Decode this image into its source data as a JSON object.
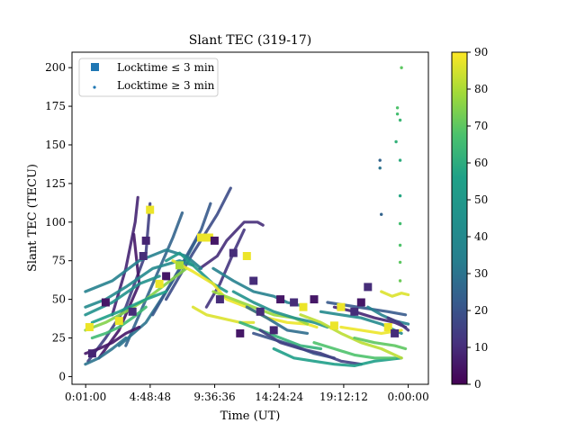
{
  "chart_data": {
    "type": "scatter",
    "title": "Slant TEC (319-17)",
    "xlabel": "Time (UT)",
    "ylabel": "Slant TEC (TECU)",
    "x_tick_labels": [
      "0:01:00",
      "4:48:48",
      "9:36:36",
      "14:24:24",
      "19:12:12",
      "0:00:00"
    ],
    "x_tick_hours": [
      0.0167,
      4.8133,
      9.61,
      14.4067,
      19.2033,
      24.0
    ],
    "xlim_hours": [
      -1.0,
      25.5
    ],
    "ylim": [
      -5,
      210
    ],
    "y_ticks": [
      0,
      25,
      50,
      75,
      100,
      125,
      150,
      175,
      200
    ],
    "colorbar": {
      "colormap": "viridis",
      "range": [
        0,
        90
      ],
      "ticks": [
        0,
        10,
        20,
        30,
        40,
        50,
        60,
        70,
        80,
        90
      ]
    },
    "legend": {
      "placement": "top-left",
      "entries": [
        {
          "label": "Locktime ≤ 3 min",
          "marker": "square",
          "color": "#1f77b4"
        },
        {
          "label": "Locktime ≥ 3 min",
          "marker": "dot",
          "color": "#1f77b4"
        }
      ]
    },
    "grid": false,
    "series": [
      {
        "c": 15,
        "points": [
          [
            0.2,
            10
          ],
          [
            1.5,
            25
          ],
          [
            3.0,
            45
          ],
          [
            4.5,
            80
          ],
          [
            4.8,
            112
          ]
        ]
      },
      {
        "c": 5,
        "points": [
          [
            1.0,
            12
          ],
          [
            2.5,
            30
          ],
          [
            4.0,
            60
          ],
          [
            3.6,
            92
          ]
        ]
      },
      {
        "c": 8,
        "points": [
          [
            2.0,
            40
          ],
          [
            3.0,
            70
          ],
          [
            3.7,
            100
          ],
          [
            3.9,
            116
          ]
        ]
      },
      {
        "c": 25,
        "points": [
          [
            3.0,
            20
          ],
          [
            5.0,
            60
          ],
          [
            6.5,
            90
          ],
          [
            7.2,
            106
          ]
        ]
      },
      {
        "c": 30,
        "points": [
          [
            2.5,
            20
          ],
          [
            4.5,
            35
          ],
          [
            6.0,
            55
          ],
          [
            7.4,
            75
          ],
          [
            8.2,
            88
          ]
        ]
      },
      {
        "c": 22,
        "points": [
          [
            5.0,
            40
          ],
          [
            7.0,
            70
          ],
          [
            8.6,
            95
          ],
          [
            9.3,
            112
          ]
        ]
      },
      {
        "c": 18,
        "points": [
          [
            6.0,
            50
          ],
          [
            8.0,
            80
          ],
          [
            9.8,
            105
          ],
          [
            10.8,
            122
          ]
        ]
      },
      {
        "c": 10,
        "points": [
          [
            8.5,
            70
          ],
          [
            9.8,
            78
          ],
          [
            10.5,
            88
          ],
          [
            11.8,
            100
          ],
          [
            12.8,
            100
          ],
          [
            13.2,
            98
          ]
        ]
      },
      {
        "c": 12,
        "points": [
          [
            9.0,
            45
          ],
          [
            10.0,
            60
          ],
          [
            11.0,
            80
          ],
          [
            11.8,
            95
          ]
        ]
      },
      {
        "c": 35,
        "points": [
          [
            0.0,
            55
          ],
          [
            2.0,
            62
          ],
          [
            4.0,
            75
          ],
          [
            6.0,
            82
          ],
          [
            7.5,
            78
          ],
          [
            8.6,
            70
          ]
        ]
      },
      {
        "c": 40,
        "points": [
          [
            0.0,
            45
          ],
          [
            1.5,
            50
          ],
          [
            3.0,
            58
          ],
          [
            5.0,
            70
          ],
          [
            7.0,
            75
          ],
          [
            8.0,
            72
          ]
        ]
      },
      {
        "c": 45,
        "points": [
          [
            0.0,
            40
          ],
          [
            2.0,
            48
          ],
          [
            4.0,
            60
          ],
          [
            5.5,
            65
          ]
        ]
      },
      {
        "c": 75,
        "points": [
          [
            0.0,
            30
          ],
          [
            1.5,
            35
          ],
          [
            3.0,
            42
          ],
          [
            4.5,
            50
          ],
          [
            6.0,
            60
          ],
          [
            7.5,
            70
          ]
        ]
      },
      {
        "c": 55,
        "points": [
          [
            0.5,
            35
          ],
          [
            2.5,
            42
          ],
          [
            4.5,
            50
          ],
          [
            6.0,
            55
          ]
        ]
      },
      {
        "c": 50,
        "points": [
          [
            6.0,
            75
          ],
          [
            7.0,
            80
          ],
          [
            8.0,
            72
          ],
          [
            9.5,
            60
          ],
          [
            10.5,
            55
          ]
        ]
      },
      {
        "c": 88,
        "points": [
          [
            6.5,
            75
          ],
          [
            8.0,
            68
          ],
          [
            9.5,
            60
          ],
          [
            10.5,
            50
          ],
          [
            12.0,
            45
          ],
          [
            13.5,
            38
          ],
          [
            15.0,
            35
          ],
          [
            16.5,
            34
          ],
          [
            17.2,
            32
          ]
        ]
      },
      {
        "c": 86,
        "points": [
          [
            8.0,
            45
          ],
          [
            9.0,
            40
          ],
          [
            10.0,
            38
          ],
          [
            11.5,
            35
          ],
          [
            12.5,
            35
          ]
        ]
      },
      {
        "c": 78,
        "points": [
          [
            9.5,
            55
          ],
          [
            11.0,
            50
          ],
          [
            12.5,
            45
          ],
          [
            14.0,
            40
          ],
          [
            15.5,
            38
          ],
          [
            16.5,
            34
          ]
        ]
      },
      {
        "c": 35,
        "points": [
          [
            9.5,
            70
          ],
          [
            11.0,
            62
          ],
          [
            12.5,
            55
          ],
          [
            14.0,
            52
          ],
          [
            15.0,
            48
          ],
          [
            16.0,
            46
          ]
        ]
      },
      {
        "c": 45,
        "points": [
          [
            11.0,
            55
          ],
          [
            12.5,
            48
          ],
          [
            14.0,
            42
          ],
          [
            15.5,
            38
          ],
          [
            17.0,
            35
          ],
          [
            18.0,
            32
          ]
        ]
      },
      {
        "c": 28,
        "points": [
          [
            12.0,
            45
          ],
          [
            13.5,
            38
          ],
          [
            15.0,
            30
          ],
          [
            16.5,
            28
          ]
        ]
      },
      {
        "c": 62,
        "points": [
          [
            11.5,
            35
          ],
          [
            13.0,
            30
          ],
          [
            14.5,
            25
          ],
          [
            16.0,
            20
          ],
          [
            17.5,
            18
          ]
        ]
      },
      {
        "c": 20,
        "points": [
          [
            12.5,
            28
          ],
          [
            14.0,
            24
          ],
          [
            15.5,
            20
          ],
          [
            17.0,
            15
          ],
          [
            18.5,
            12
          ]
        ]
      },
      {
        "c": 15,
        "points": [
          [
            13.0,
            30
          ],
          [
            14.5,
            22
          ],
          [
            16.0,
            18
          ],
          [
            17.5,
            15
          ],
          [
            19.0,
            10
          ],
          [
            20.5,
            8
          ]
        ]
      },
      {
        "c": 55,
        "points": [
          [
            14.0,
            18
          ],
          [
            15.5,
            12
          ],
          [
            17.0,
            10
          ],
          [
            18.5,
            8
          ],
          [
            20.0,
            7
          ],
          [
            21.5,
            10
          ],
          [
            23.5,
            12
          ]
        ]
      },
      {
        "c": 82,
        "points": [
          [
            16.0,
            40
          ],
          [
            17.5,
            35
          ],
          [
            19.0,
            28
          ],
          [
            20.5,
            22
          ],
          [
            22.0,
            18
          ],
          [
            23.5,
            12
          ]
        ]
      },
      {
        "c": 68,
        "points": [
          [
            17.0,
            22
          ],
          [
            18.5,
            18
          ],
          [
            20.0,
            14
          ],
          [
            21.5,
            12
          ],
          [
            23.0,
            12
          ]
        ]
      },
      {
        "c": 40,
        "points": [
          [
            17.5,
            42
          ],
          [
            19.0,
            40
          ],
          [
            20.5,
            38
          ],
          [
            22.0,
            34
          ],
          [
            23.5,
            28
          ]
        ]
      },
      {
        "c": 22,
        "points": [
          [
            18.0,
            48
          ],
          [
            19.5,
            46
          ],
          [
            21.0,
            44
          ],
          [
            22.5,
            42
          ],
          [
            23.8,
            40
          ]
        ]
      },
      {
        "c": 88,
        "points": [
          [
            19.0,
            32
          ],
          [
            20.5,
            30
          ],
          [
            22.0,
            28
          ],
          [
            23.5,
            30
          ]
        ]
      },
      {
        "c": 8,
        "points": [
          [
            18.5,
            45
          ],
          [
            20.0,
            42
          ],
          [
            21.5,
            38
          ],
          [
            23.0,
            35
          ],
          [
            23.8,
            32
          ]
        ]
      },
      {
        "c": 70,
        "points": [
          [
            20.0,
            25
          ],
          [
            21.5,
            22
          ],
          [
            23.0,
            20
          ],
          [
            23.8,
            18
          ]
        ]
      },
      {
        "c": 35,
        "points": [
          [
            21.0,
            45
          ],
          [
            22.0,
            40
          ],
          [
            23.0,
            36
          ],
          [
            24.0,
            34
          ]
        ]
      },
      {
        "c": 86,
        "points": [
          [
            22.0,
            55
          ],
          [
            22.8,
            52
          ],
          [
            23.5,
            54
          ],
          [
            24.0,
            53
          ]
        ]
      },
      {
        "c": 12,
        "points": [
          [
            22.5,
            38
          ],
          [
            23.3,
            35
          ],
          [
            24.0,
            30
          ]
        ]
      },
      {
        "c": 5,
        "points": [
          [
            0.0,
            15
          ],
          [
            1.0,
            18
          ],
          [
            2.0,
            22
          ],
          [
            3.0,
            28
          ],
          [
            4.0,
            32
          ]
        ]
      },
      {
        "c": 65,
        "points": [
          [
            0.5,
            25
          ],
          [
            1.5,
            28
          ],
          [
            2.5,
            32
          ],
          [
            3.5,
            38
          ],
          [
            4.5,
            45
          ]
        ]
      },
      {
        "c": 30,
        "points": [
          [
            0.0,
            8
          ],
          [
            1.0,
            12
          ],
          [
            2.0,
            18
          ],
          [
            3.0,
            25
          ]
        ]
      }
    ],
    "locktime_short": [
      [
        4.8,
        108,
        88
      ],
      [
        4.5,
        88,
        8
      ],
      [
        4.3,
        78,
        10
      ],
      [
        7.0,
        72,
        80
      ],
      [
        8.6,
        90,
        88
      ],
      [
        9.2,
        90,
        88
      ],
      [
        9.6,
        88,
        5
      ],
      [
        11.0,
        80,
        10
      ],
      [
        12.0,
        78,
        88
      ],
      [
        12.5,
        62,
        10
      ],
      [
        13.0,
        42,
        10
      ],
      [
        11.5,
        28,
        5
      ],
      [
        14.5,
        50,
        5
      ],
      [
        15.5,
        48,
        10
      ],
      [
        16.2,
        45,
        88
      ],
      [
        17.0,
        50,
        5
      ],
      [
        19.0,
        45,
        88
      ],
      [
        20.0,
        42,
        10
      ],
      [
        21.0,
        58,
        10
      ],
      [
        22.5,
        32,
        88
      ],
      [
        23.0,
        28,
        10
      ],
      [
        1.5,
        48,
        5
      ],
      [
        2.5,
        36,
        88
      ],
      [
        3.5,
        42,
        10
      ],
      [
        0.5,
        15,
        8
      ],
      [
        0.3,
        32,
        88
      ],
      [
        6.0,
        65,
        5
      ],
      [
        5.5,
        60,
        88
      ],
      [
        10.0,
        50,
        10
      ],
      [
        14.0,
        30,
        8
      ],
      [
        18.5,
        33,
        88
      ],
      [
        20.5,
        48,
        5
      ]
    ],
    "isolated_points": [
      [
        21.9,
        140,
        25
      ],
      [
        21.9,
        135,
        30
      ],
      [
        22.0,
        105,
        25
      ],
      [
        23.5,
        200,
        70
      ],
      [
        23.2,
        174,
        68
      ],
      [
        23.2,
        170,
        66
      ],
      [
        23.4,
        166,
        64
      ],
      [
        23.1,
        152,
        62
      ],
      [
        23.4,
        140,
        60
      ],
      [
        23.4,
        117,
        58
      ],
      [
        23.4,
        99,
        66
      ],
      [
        23.4,
        85,
        68
      ],
      [
        23.4,
        74,
        70
      ],
      [
        23.4,
        62,
        72
      ]
    ]
  }
}
